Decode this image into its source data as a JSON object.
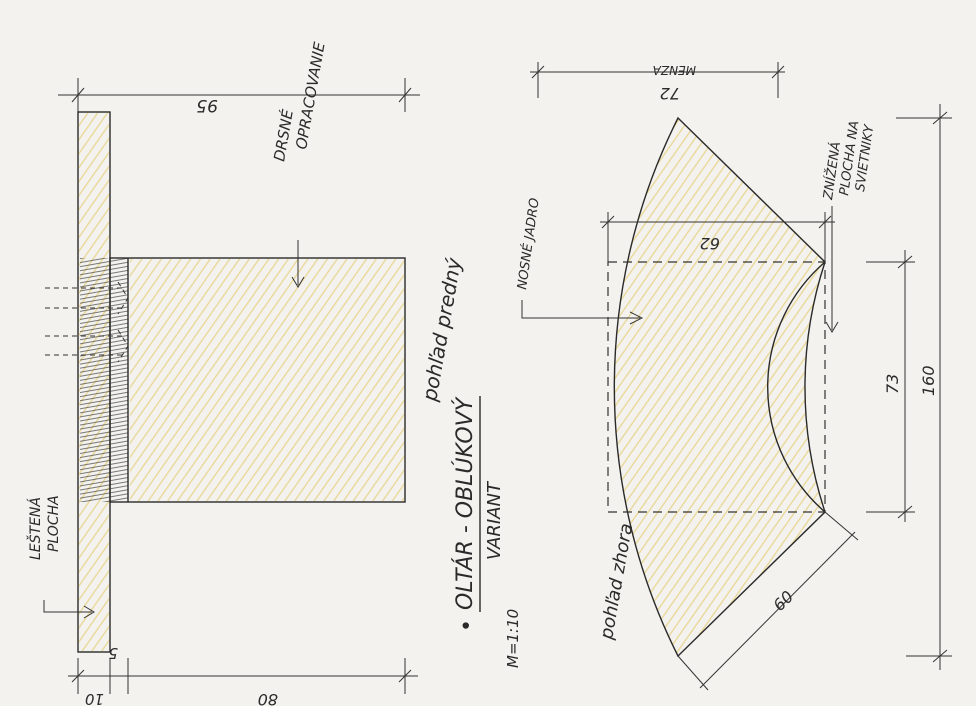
{
  "title": {
    "bullet": "•",
    "main": "OLTÁR - OBLÚKOVÝ",
    "sub": "VARIANT",
    "scale": "M=1:10"
  },
  "front_view": {
    "caption": "pohľad predný",
    "dim_top": "95",
    "dim_bottom_left": "10",
    "dim_bottom_right": "80",
    "dim_small": "5",
    "label_rough": "DRSNÉ OPRACOVANIE",
    "label_polished": "LEŠTENÁ PLOCHA"
  },
  "top_view": {
    "caption": "pohľad zhora",
    "dim_menza": "72",
    "label_menza": "MENZA",
    "dim_core": "62",
    "label_core": "NOSNÉ JADRO",
    "label_lowered": "ZNÍŽENÁ PLOCHA NA SVIETNIKY",
    "dim_73": "73",
    "dim_160": "160",
    "dim_60": "60"
  },
  "colors": {
    "paper": "#f3f2ee",
    "ink": "#2a2a2a",
    "stone_yellow": "#e9d27a",
    "dark_shade": "#555555"
  }
}
